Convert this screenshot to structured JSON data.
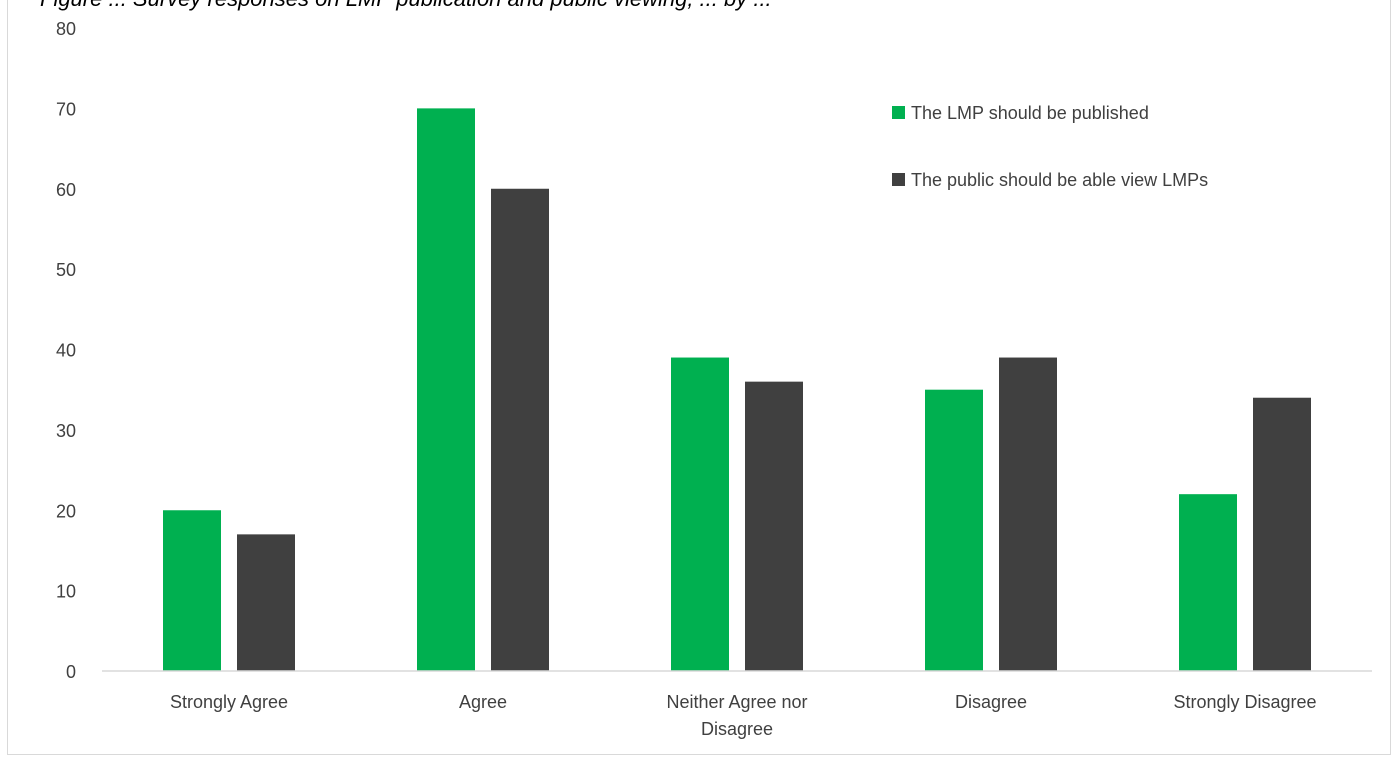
{
  "chart_data": {
    "type": "bar",
    "title": "Figure ... Survey responses on LMP publication and public viewing, ... by ...",
    "categories": [
      "Strongly Agree",
      "Agree",
      "Neither Agree nor Disagree",
      "Disagree",
      "Strongly Disagree"
    ],
    "category_lines": [
      [
        "Strongly Agree"
      ],
      [
        "Agree"
      ],
      [
        "Neither Agree nor",
        "Disagree"
      ],
      [
        "Disagree"
      ],
      [
        "Strongly Disagree"
      ]
    ],
    "series": [
      {
        "name": "The LMP should be published",
        "color": "#00b050",
        "values": [
          20,
          70,
          39,
          35,
          22
        ]
      },
      {
        "name": "The public should be able view LMPs",
        "color": "#404040",
        "values": [
          17,
          60,
          36,
          39,
          34
        ]
      }
    ],
    "ylim": [
      0,
      80
    ],
    "yticks": [
      0,
      10,
      20,
      30,
      40,
      50,
      60,
      70,
      80
    ],
    "grid": false,
    "legend_position": "top-right",
    "xlabel": "",
    "ylabel": ""
  }
}
